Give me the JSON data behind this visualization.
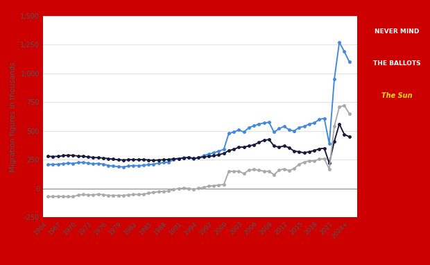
{
  "title": "",
  "ylabel": "Migration figures in thousands",
  "fig_bg_color": "#cc0000",
  "plot_bg_color": "#f5f5f5",
  "chart_bg_color": "#ffffff",
  "immigration_color": "#4488dd",
  "emigration_color": "#1a1a3a",
  "net_migration_color": "#aaaaaa",
  "years": [
    1964,
    1965,
    1966,
    1967,
    1968,
    1969,
    1970,
    1971,
    1972,
    1973,
    1974,
    1975,
    1976,
    1977,
    1978,
    1979,
    1980,
    1981,
    1982,
    1983,
    1984,
    1985,
    1986,
    1987,
    1988,
    1989,
    1990,
    1991,
    1992,
    1993,
    1994,
    1995,
    1996,
    1997,
    1998,
    1999,
    2000,
    2001,
    2002,
    2003,
    2004,
    2005,
    2006,
    2007,
    2008,
    2009,
    2010,
    2011,
    2012,
    2013,
    2014,
    2015,
    2016,
    2017,
    2018,
    2019,
    2020,
    2021,
    2022,
    2023,
    2024
  ],
  "immigration": [
    210,
    208,
    212,
    215,
    220,
    218,
    225,
    228,
    220,
    215,
    218,
    212,
    200,
    195,
    190,
    188,
    195,
    200,
    198,
    202,
    208,
    212,
    220,
    225,
    230,
    250,
    260,
    268,
    270,
    255,
    270,
    285,
    300,
    310,
    325,
    340,
    480,
    490,
    510,
    490,
    530,
    545,
    560,
    570,
    575,
    490,
    520,
    540,
    510,
    500,
    530,
    540,
    560,
    570,
    600,
    610,
    390,
    950,
    1270,
    1190,
    1100
  ],
  "emigration": [
    280,
    278,
    280,
    285,
    290,
    288,
    282,
    280,
    275,
    270,
    268,
    265,
    260,
    255,
    250,
    248,
    250,
    252,
    250,
    252,
    248,
    245,
    248,
    250,
    252,
    258,
    260,
    265,
    270,
    262,
    268,
    275,
    280,
    285,
    295,
    305,
    330,
    340,
    360,
    360,
    370,
    380,
    400,
    420,
    425,
    370,
    360,
    370,
    355,
    325,
    320,
    310,
    320,
    330,
    345,
    350,
    220,
    410,
    560,
    470,
    450
  ],
  "net_migration": [
    -70,
    -70,
    -68,
    -70,
    -70,
    -70,
    -57,
    -52,
    -55,
    -55,
    -50,
    -53,
    -60,
    -60,
    -60,
    -60,
    -55,
    -52,
    -52,
    -50,
    -40,
    -33,
    -28,
    -25,
    -22,
    -8,
    0,
    3,
    0,
    -7,
    2,
    10,
    20,
    25,
    30,
    35,
    150,
    150,
    150,
    130,
    160,
    165,
    160,
    150,
    150,
    120,
    160,
    170,
    155,
    175,
    210,
    230,
    240,
    240,
    255,
    260,
    170,
    540,
    710,
    720,
    650
  ],
  "ylim": [
    -250,
    1500
  ],
  "yticks": [
    -250,
    0,
    250,
    500,
    750,
    1000,
    1250,
    1500
  ],
  "ytick_labels": [
    "-250",
    "0",
    "250",
    "500",
    "750",
    "1,000",
    "1,250",
    "1,500"
  ],
  "marker_size": 2.5,
  "line_width": 1.4
}
